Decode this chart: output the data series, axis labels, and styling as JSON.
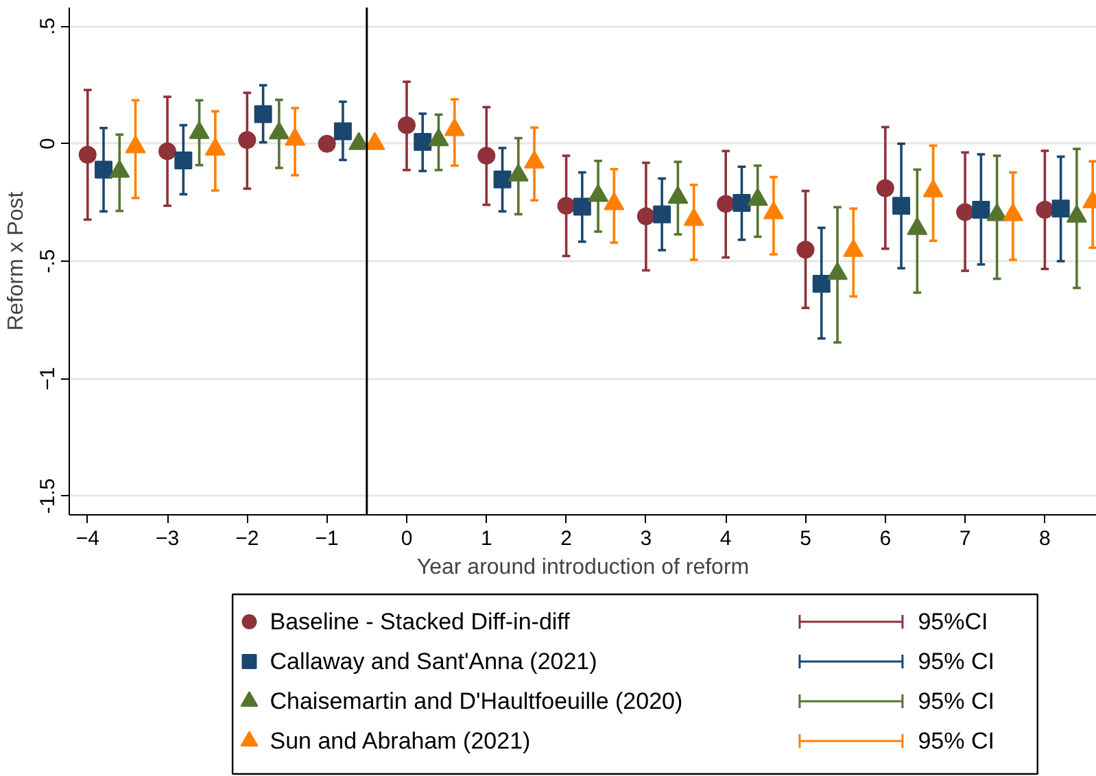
{
  "chart_data": {
    "type": "scatter",
    "xlabel": "Year around introduction of reform",
    "ylabel": "Reform x Post",
    "xlim": [
      -4.23,
      8.65
    ],
    "ylim": [
      -1.58,
      0.58
    ],
    "xticks": [
      -4,
      -3,
      -2,
      -1,
      0,
      1,
      2,
      3,
      4,
      5,
      6,
      7,
      8
    ],
    "yticks": [
      {
        "value": 0.5,
        "label": ".5"
      },
      0,
      {
        "value": -0.5,
        "label": "-.5"
      },
      -1,
      {
        "value": -1.5,
        "label": "-1.5"
      }
    ],
    "grid": "y",
    "legend": "bottom",
    "ref_lines": [
      {
        "axis": "x",
        "value": -0.5,
        "color": "#000000"
      }
    ],
    "annotations": [
      "95%CI",
      "95% CI",
      "95% CI",
      "95% CI"
    ],
    "series": [
      {
        "name": "Baseline - Stacked Diff-in-diff",
        "color": "#8f3239",
        "marker": "circle",
        "x": [
          -4,
          -3,
          -2,
          -1,
          0,
          1,
          2,
          3,
          4,
          5,
          6,
          7,
          8
        ],
        "values": [
          -0.047,
          -0.032,
          0.016,
          0,
          0.079,
          -0.051,
          -0.264,
          -0.309,
          -0.256,
          -0.451,
          -0.189,
          -0.291,
          -0.281
        ],
        "errors": [
          [
            -0.323,
            0.229
          ],
          [
            -0.264,
            0.2
          ],
          [
            -0.191,
            0.217
          ],
          null,
          [
            -0.112,
            0.264
          ],
          [
            -0.26,
            0.156
          ],
          [
            -0.478,
            -0.051
          ],
          [
            -0.539,
            -0.081
          ],
          [
            -0.484,
            -0.031
          ],
          [
            -0.699,
            -0.201
          ],
          [
            -0.447,
            0.071
          ],
          [
            -0.541,
            -0.037
          ],
          [
            -0.533,
            -0.03
          ]
        ]
      },
      {
        "name": "Callaway and Sant'Anna (2021)",
        "color": "#1a476f",
        "marker": "square",
        "x": [
          -3.8,
          -2.8,
          -1.8,
          -0.8,
          0.2,
          1.2,
          2.2,
          3.2,
          4.2,
          5.2,
          6.2,
          7.2,
          8.2
        ],
        "values": [
          -0.11,
          -0.071,
          0.126,
          0.053,
          0.008,
          -0.152,
          -0.268,
          -0.301,
          -0.252,
          -0.596,
          -0.264,
          -0.281,
          -0.276
        ],
        "errors": [
          [
            -0.288,
            0.067
          ],
          [
            -0.215,
            0.079
          ],
          [
            0.006,
            0.249
          ],
          [
            -0.069,
            0.179
          ],
          [
            -0.116,
            0.128
          ],
          [
            -0.288,
            -0.018
          ],
          [
            -0.417,
            -0.122
          ],
          [
            -0.453,
            -0.148
          ],
          [
            -0.409,
            -0.098
          ],
          [
            -0.829,
            -0.358
          ],
          [
            -0.53,
            0.0
          ],
          [
            -0.514,
            -0.045
          ],
          [
            -0.5,
            -0.055
          ]
        ]
      },
      {
        "name": "Chaisemartin and D'Haultfoeuille (2020)",
        "color": "#55752f",
        "marker": "triangle",
        "x": [
          -3.6,
          -2.6,
          -1.6,
          -0.6,
          0.4,
          1.4,
          2.4,
          3.4,
          4.4,
          5.4,
          6.4,
          7.4,
          8.4
        ],
        "values": [
          -0.118,
          0.047,
          0.045,
          0,
          0.016,
          -0.134,
          -0.221,
          -0.229,
          -0.238,
          -0.553,
          -0.362,
          -0.303,
          -0.309
        ],
        "errors": [
          [
            -0.286,
            0.039
          ],
          [
            -0.091,
            0.185
          ],
          [
            -0.103,
            0.187
          ],
          null,
          [
            -0.112,
            0.124
          ],
          [
            -0.3,
            0.024
          ],
          [
            -0.374,
            -0.073
          ],
          [
            -0.386,
            -0.077
          ],
          [
            -0.396,
            -0.093
          ],
          [
            -0.846,
            -0.27
          ],
          [
            -0.634,
            -0.11
          ],
          [
            -0.575,
            -0.051
          ],
          [
            -0.614,
            -0.022
          ]
        ]
      },
      {
        "name": "Sun and Abraham (2021)",
        "color": "#ff8000",
        "marker": "triangle",
        "x": [
          -3.4,
          -2.4,
          -1.4,
          -0.4,
          0.6,
          1.6,
          2.6,
          3.6,
          4.6,
          5.6,
          6.6,
          7.6,
          8.6
        ],
        "values": [
          -0.014,
          -0.024,
          0.018,
          0,
          0.059,
          -0.079,
          -0.256,
          -0.323,
          -0.295,
          -0.455,
          -0.201,
          -0.303,
          -0.248
        ],
        "errors": [
          [
            -0.231,
            0.185
          ],
          [
            -0.199,
            0.138
          ],
          [
            -0.134,
            0.152
          ],
          null,
          [
            -0.093,
            0.189
          ],
          [
            -0.241,
            0.069
          ],
          [
            -0.421,
            -0.108
          ],
          [
            -0.494,
            -0.175
          ],
          [
            -0.471,
            -0.142
          ],
          [
            -0.65,
            -0.276
          ],
          [
            -0.413,
            -0.008
          ],
          [
            -0.494,
            -0.122
          ],
          [
            -0.443,
            -0.075
          ]
        ]
      }
    ]
  }
}
